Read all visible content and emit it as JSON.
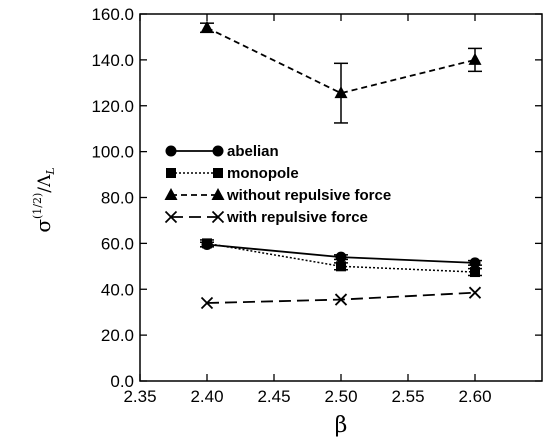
{
  "chart_data": {
    "type": "line",
    "xlabel": "β",
    "ylabel_main": "σ",
    "ylabel_sup": "(1/2)",
    "ylabel_denominator": "/Λ",
    "ylabel_sub": "L",
    "xlim": [
      2.35,
      2.65
    ],
    "ylim": [
      0,
      160
    ],
    "xticks": [
      2.35,
      2.4,
      2.45,
      2.5,
      2.55,
      2.6
    ],
    "xtick_labels": [
      "2.35",
      "2.40",
      "2.45",
      "2.50",
      "2.55",
      "2.60"
    ],
    "yticks": [
      0,
      20,
      40,
      60,
      80,
      100,
      120,
      140,
      160
    ],
    "ytick_labels": [
      "0.0",
      "20.0",
      "40.0",
      "60.0",
      "80.0",
      "100.0",
      "120.0",
      "140.0",
      "160.0"
    ],
    "grid": false,
    "legend_position": "center-left",
    "series": [
      {
        "name": "abelian",
        "marker": "circle",
        "line": "solid",
        "x": [
          2.4,
          2.5,
          2.6
        ],
        "y": [
          59.5,
          54.0,
          51.5
        ],
        "yerr": [
          1.0,
          1.0,
          1.0
        ]
      },
      {
        "name": "monopole",
        "marker": "square",
        "line": "dotted",
        "x": [
          2.4,
          2.5,
          2.6
        ],
        "y": [
          60.0,
          50.0,
          47.5
        ],
        "yerr": [
          1.5,
          1.5,
          1.5
        ]
      },
      {
        "name": "without repulsive force",
        "marker": "triangle",
        "line": "dashed",
        "x": [
          2.4,
          2.5,
          2.6
        ],
        "y": [
          154.0,
          125.5,
          140.0
        ],
        "yerr": [
          2.0,
          13.0,
          5.0
        ]
      },
      {
        "name": "with repulsive force",
        "marker": "cross",
        "line": "longdash",
        "x": [
          2.4,
          2.5,
          2.6
        ],
        "y": [
          34.0,
          35.5,
          38.5
        ],
        "yerr": [
          0,
          0,
          0
        ]
      }
    ]
  }
}
